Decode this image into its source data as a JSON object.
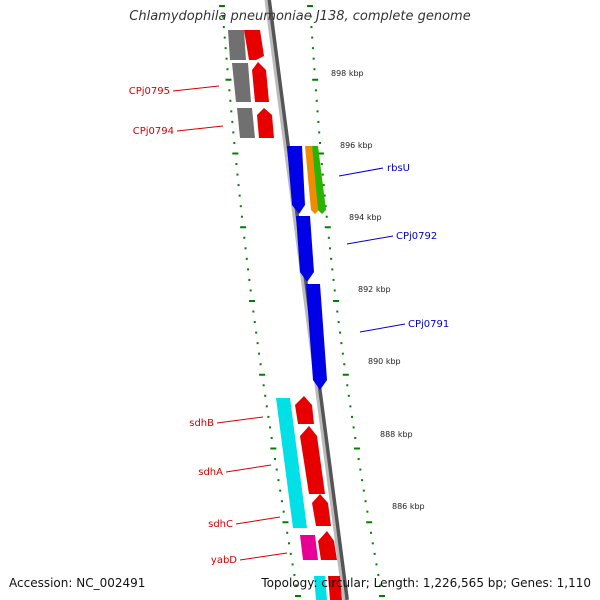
{
  "title": "Chlamydophila pneumoniae J138, complete genome",
  "footer": {
    "accession": "Accession: NC_002491",
    "topology": "Topology: circular; Length: 1,226,565 bp; Genes: 1,110"
  },
  "colors": {
    "background": "#ffffff",
    "backbone": "#888888",
    "tick": "#008000",
    "reverse_label": "#d40000",
    "forward_label": "#0000c8"
  },
  "scale_labels": [
    "898 kbp",
    "896 kbp",
    "894 kbp",
    "892 kbp",
    "890 kbp",
    "888 kbp",
    "886 kbp"
  ],
  "genes_reverse_labeled": [
    {
      "label": "CPj0795",
      "color": "#d40000"
    },
    {
      "label": "CPj0794",
      "color": "#d40000"
    },
    {
      "label": "sdhB",
      "color": "#d40000"
    },
    {
      "label": "sdhA",
      "color": "#d40000"
    },
    {
      "label": "sdhC",
      "color": "#d40000"
    },
    {
      "label": "yabD",
      "color": "#d40000"
    }
  ],
  "genes_forward_labeled": [
    {
      "label": "rbsU",
      "color": "#0000c8"
    },
    {
      "label": "CPj0792",
      "color": "#0000c8"
    },
    {
      "label": "CPj0791",
      "color": "#0000c8"
    }
  ]
}
